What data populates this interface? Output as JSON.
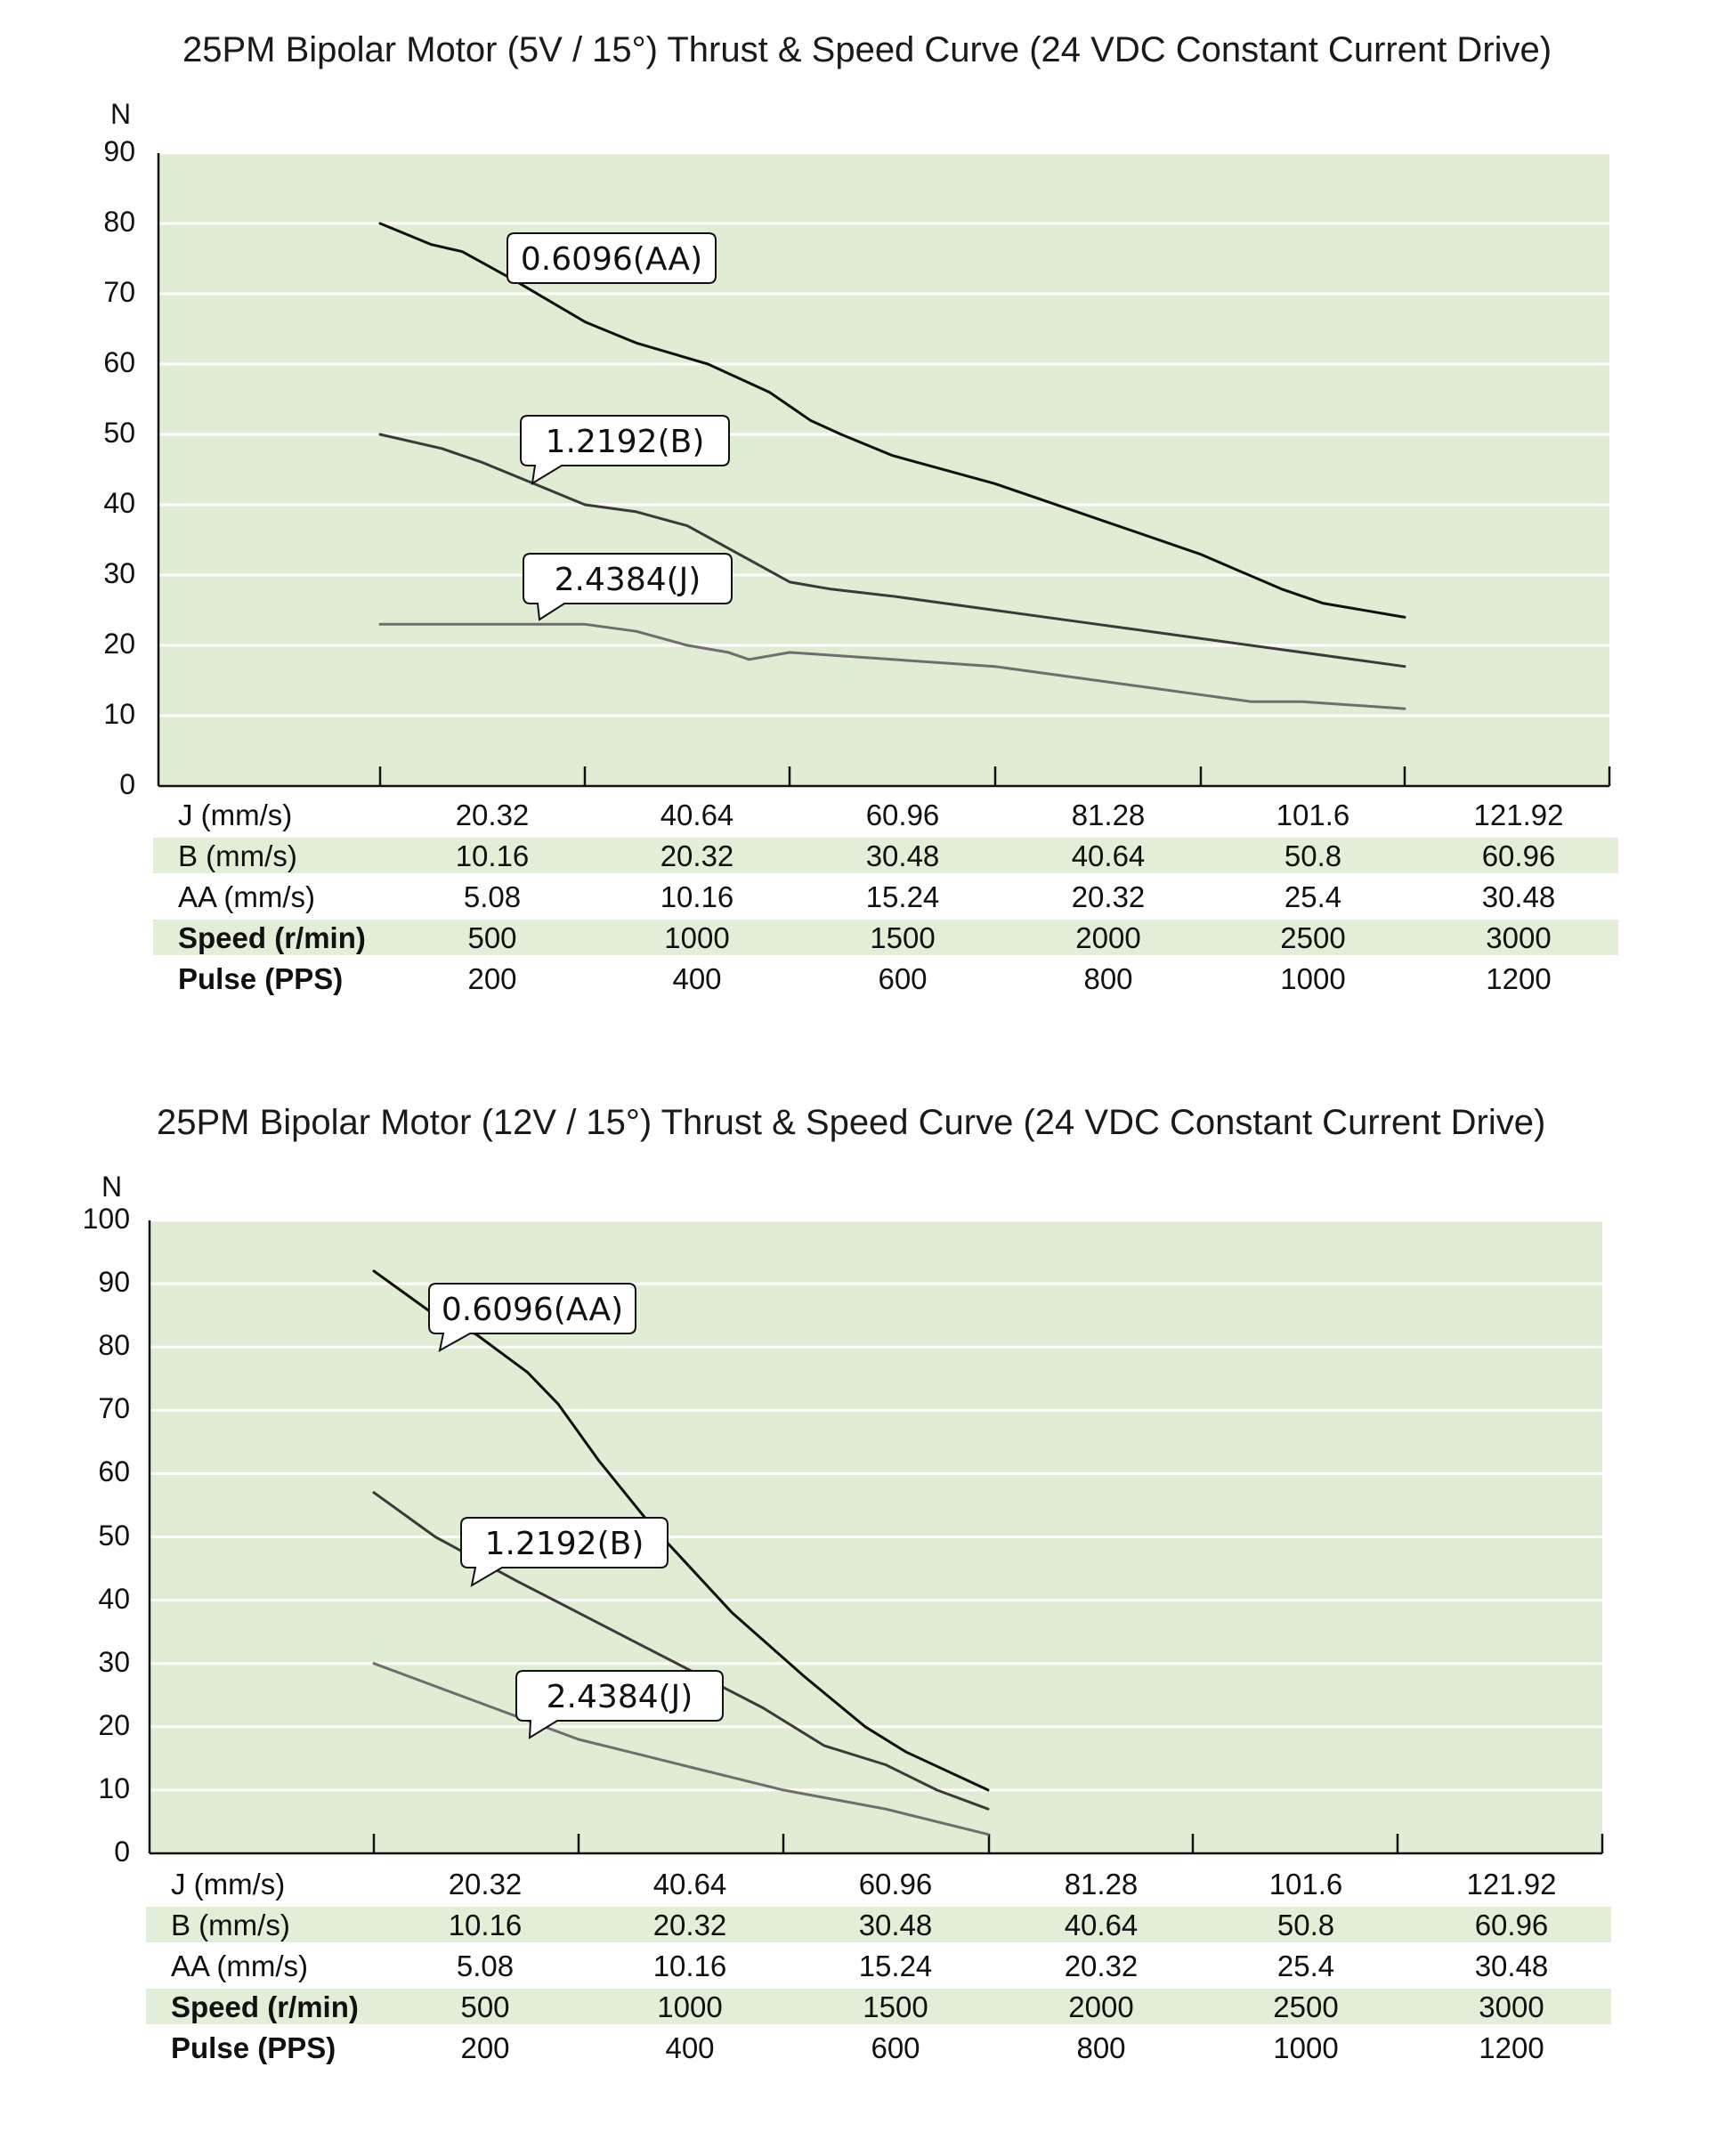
{
  "chart_data": [
    {
      "type": "line",
      "title": "25PM Bipolar Motor (5V / 15°) Thrust & Speed Curve (24 VDC Constant Current Drive)",
      "ylabel": "N",
      "ylim": [
        0,
        90
      ],
      "yticks": [
        0,
        10,
        20,
        30,
        40,
        50,
        60,
        70,
        80,
        90
      ],
      "xlim": [
        0,
        1200
      ],
      "x_axis_quantity": "Pulse (PPS)",
      "grid": true,
      "background_color": "#e1ecd5",
      "series": [
        {
          "name": "0.6096(AA)",
          "color": "#111111",
          "x": [
            200,
            250,
            280,
            330,
            400,
            450,
            520,
            580,
            620,
            650,
            700,
            800,
            900,
            1000,
            1080,
            1120,
            1200
          ],
          "y": [
            80,
            77,
            76,
            72,
            66,
            63,
            60,
            56,
            52,
            50,
            47,
            43,
            38,
            33,
            28,
            26,
            24
          ]
        },
        {
          "name": "1.2192(B)",
          "color": "#3a3a3a",
          "x": [
            200,
            260,
            300,
            350,
            400,
            450,
            500,
            550,
            600,
            640,
            700,
            800,
            900,
            1000,
            1100,
            1200
          ],
          "y": [
            50,
            48,
            46,
            43,
            40,
            39,
            37,
            33,
            29,
            28,
            27,
            25,
            23,
            21,
            19,
            17
          ]
        },
        {
          "name": "2.4384(J)",
          "color": "#6e6e6e",
          "x": [
            200,
            300,
            350,
            400,
            450,
            500,
            540,
            560,
            600,
            700,
            800,
            900,
            950,
            1000,
            1050,
            1100,
            1200
          ],
          "y": [
            23,
            23,
            23,
            23,
            22,
            20,
            19,
            18,
            19,
            18,
            17,
            15,
            14,
            13,
            12,
            12,
            11
          ]
        }
      ],
      "table": {
        "rows": [
          {
            "label": "J (mm/s)",
            "bold": false,
            "shaded": false,
            "values": [
              "20.32",
              "40.64",
              "60.96",
              "81.28",
              "101.6",
              "121.92"
            ]
          },
          {
            "label": "B (mm/s)",
            "bold": false,
            "shaded": true,
            "values": [
              "10.16",
              "20.32",
              "30.48",
              "40.64",
              "50.8",
              "60.96"
            ]
          },
          {
            "label": "AA (mm/s)",
            "bold": false,
            "shaded": false,
            "values": [
              "5.08",
              "10.16",
              "15.24",
              "20.32",
              "25.4",
              "30.48"
            ]
          },
          {
            "label": "Speed (r/min)",
            "bold": true,
            "shaded": true,
            "values": [
              "500",
              "1000",
              "1500",
              "2000",
              "2500",
              "3000"
            ]
          },
          {
            "label": "Pulse (PPS)",
            "bold": true,
            "shaded": false,
            "values": [
              "200",
              "400",
              "600",
              "800",
              "1000",
              "1200"
            ]
          }
        ]
      }
    },
    {
      "type": "line",
      "title": "25PM Bipolar Motor (12V / 15°) Thrust & Speed Curve (24 VDC Constant Current Drive)",
      "ylabel": "N",
      "ylim": [
        0,
        100
      ],
      "yticks": [
        0,
        10,
        20,
        30,
        40,
        50,
        60,
        70,
        80,
        90,
        100
      ],
      "xlim": [
        0,
        1200
      ],
      "x_axis_quantity": "Pulse (PPS)",
      "grid": true,
      "background_color": "#e1ecd5",
      "series": [
        {
          "name": "0.6096(AA)",
          "color": "#111111",
          "x": [
            200,
            260,
            300,
            350,
            380,
            420,
            470,
            550,
            620,
            680,
            720,
            800
          ],
          "y": [
            92,
            85,
            82,
            76,
            71,
            62,
            52,
            38,
            28,
            20,
            16,
            10
          ]
        },
        {
          "name": "1.2192(B)",
          "color": "#3a3a3a",
          "x": [
            200,
            260,
            340,
            400,
            460,
            520,
            580,
            640,
            700,
            750,
            800
          ],
          "y": [
            57,
            50,
            43,
            38,
            33,
            28,
            23,
            17,
            14,
            10,
            7
          ]
        },
        {
          "name": "2.4384(J)",
          "color": "#6e6e6e",
          "x": [
            200,
            250,
            300,
            350,
            400,
            450,
            500,
            550,
            600,
            700,
            800
          ],
          "y": [
            30,
            27,
            24,
            21,
            18,
            16,
            14,
            12,
            10,
            7,
            3
          ]
        }
      ],
      "table": {
        "rows": [
          {
            "label": "J (mm/s)",
            "bold": false,
            "shaded": false,
            "values": [
              "20.32",
              "40.64",
              "60.96",
              "81.28",
              "101.6",
              "121.92"
            ]
          },
          {
            "label": "B (mm/s)",
            "bold": false,
            "shaded": true,
            "values": [
              "10.16",
              "20.32",
              "30.48",
              "40.64",
              "50.8",
              "60.96"
            ]
          },
          {
            "label": "AA (mm/s)",
            "bold": false,
            "shaded": false,
            "values": [
              "5.08",
              "10.16",
              "15.24",
              "20.32",
              "25.4",
              "30.48"
            ]
          },
          {
            "label": "Speed (r/min)",
            "bold": true,
            "shaded": true,
            "values": [
              "500",
              "1000",
              "1500",
              "2000",
              "2500",
              "3000"
            ]
          },
          {
            "label": "Pulse (PPS)",
            "bold": true,
            "shaded": false,
            "values": [
              "200",
              "400",
              "600",
              "800",
              "1000",
              "1200"
            ]
          }
        ]
      }
    }
  ]
}
